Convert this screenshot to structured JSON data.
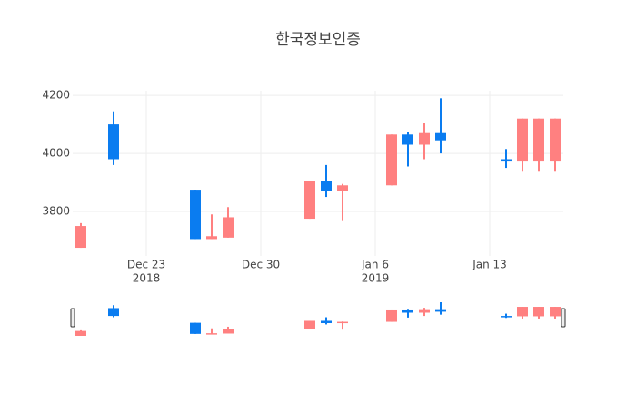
{
  "chart_data": {
    "type": "candlestick",
    "title": "한국정보인증",
    "x": [
      "2018-12-19",
      "2018-12-21",
      "2018-12-26",
      "2018-12-27",
      "2018-12-28",
      "2019-01-02",
      "2019-01-03",
      "2019-01-04",
      "2019-01-07",
      "2019-01-08",
      "2019-01-09",
      "2019-01-10",
      "2019-01-14",
      "2019-01-15",
      "2019-01-16",
      "2019-01-17"
    ],
    "open": [
      3675,
      4100,
      3875,
      3705,
      3710,
      3775,
      3905,
      3870,
      3890,
      4065,
      4030,
      4070,
      3980,
      3975,
      3975,
      3975
    ],
    "high": [
      3760,
      4145,
      3875,
      3790,
      3815,
      3905,
      3960,
      3895,
      4065,
      4075,
      4105,
      4190,
      4015,
      4120,
      4120,
      4120
    ],
    "low": [
      3675,
      3960,
      3705,
      3705,
      3710,
      3775,
      3850,
      3770,
      3890,
      3955,
      3980,
      4000,
      3950,
      3940,
      3940,
      3940
    ],
    "close": [
      3750,
      3980,
      3705,
      3715,
      3780,
      3905,
      3870,
      3890,
      4065,
      4030,
      4070,
      4045,
      3975,
      4120,
      4120,
      4120
    ],
    "increasing_color": "#ff8080",
    "decreasing_color": "#0a7cf0",
    "xlim": [
      "2018-12-18T12:00",
      "2019-01-17T12:00"
    ],
    "xticks": [
      {
        "value": "2018-12-23",
        "label": "Dec 23",
        "year": "2018"
      },
      {
        "value": "2018-12-30",
        "label": "Dec 30"
      },
      {
        "value": "2019-01-06",
        "label": "Jan 6",
        "year": "2019"
      },
      {
        "value": "2019-01-13",
        "label": "Jan 13"
      }
    ],
    "ylim": [
      3647,
      4216
    ],
    "yticks": [
      3800,
      4000,
      4200
    ],
    "grid": true,
    "rangeslider": true
  }
}
